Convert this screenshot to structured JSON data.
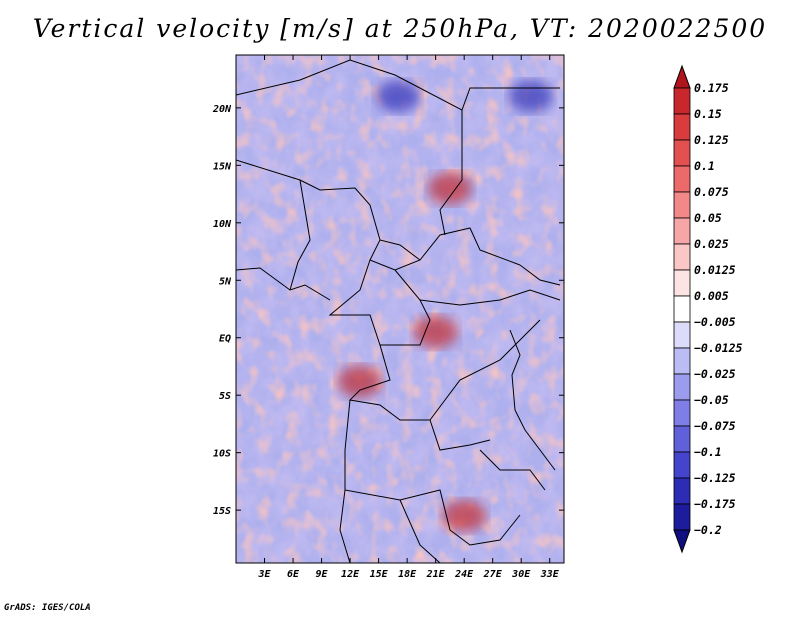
{
  "chart_data": {
    "type": "heatmap",
    "title": "Vertical velocity [m/s] at 250hPa, VT: 2020022500",
    "variable": "Vertical velocity",
    "units": "m/s",
    "level": "250hPa",
    "valid_time": "2020022500",
    "x_axis": {
      "label": "",
      "range": [
        0,
        34.5
      ],
      "ticks": [
        3,
        6,
        9,
        12,
        15,
        18,
        21,
        24,
        27,
        30,
        33
      ],
      "tick_labels": [
        "3E",
        "6E",
        "9E",
        "12E",
        "15E",
        "18E",
        "21E",
        "24E",
        "27E",
        "30E",
        "33E"
      ]
    },
    "y_axis": {
      "label": "",
      "range": [
        -19.6,
        24.6
      ],
      "ticks": [
        20,
        15,
        10,
        5,
        0,
        -5,
        -10,
        -15
      ],
      "tick_labels": [
        "20N",
        "15N",
        "10N",
        "5N",
        "EQ",
        "5S",
        "10S",
        "15S"
      ]
    },
    "colorbar": {
      "orientation": "vertical",
      "labels": [
        "0.175",
        "0.15",
        "0.125",
        "0.1",
        "0.075",
        "0.05",
        "0.025",
        "0.0125",
        "0.005",
        "−0.005",
        "−0.0125",
        "−0.025",
        "−0.05",
        "−0.075",
        "−0.1",
        "−0.125",
        "−0.175",
        "−0.2"
      ],
      "colors": [
        "#b0141c",
        "#c8282c",
        "#d83c3c",
        "#e25050",
        "#ec6a6a",
        "#f28888",
        "#f6a6a6",
        "#fac6c6",
        "#fde4e4",
        "#ffffff",
        "#dcdcfa",
        "#bcbcf4",
        "#9c9cee",
        "#7e7ee6",
        "#6060da",
        "#4444cc",
        "#2c2cb4",
        "#1c1c9c",
        "#0e0e80"
      ]
    },
    "features": [
      {
        "label": "strong upward motion",
        "lon": 21,
        "lat": 0.5,
        "sign": "positive"
      },
      {
        "label": "strong upward motion",
        "lon": 13,
        "lat": -3.8,
        "sign": "positive"
      },
      {
        "label": "strong upward motion",
        "lon": 24,
        "lat": -15.5,
        "sign": "positive"
      },
      {
        "label": "upward band",
        "lon": 22.5,
        "lat": 13,
        "sign": "positive"
      },
      {
        "label": "strong downward motion",
        "lon": 17,
        "lat": 21,
        "sign": "negative"
      },
      {
        "label": "strong downward motion",
        "lon": 31,
        "lat": 21,
        "sign": "negative"
      }
    ]
  },
  "footer": {
    "text": "GrADS: IGES/COLA"
  }
}
